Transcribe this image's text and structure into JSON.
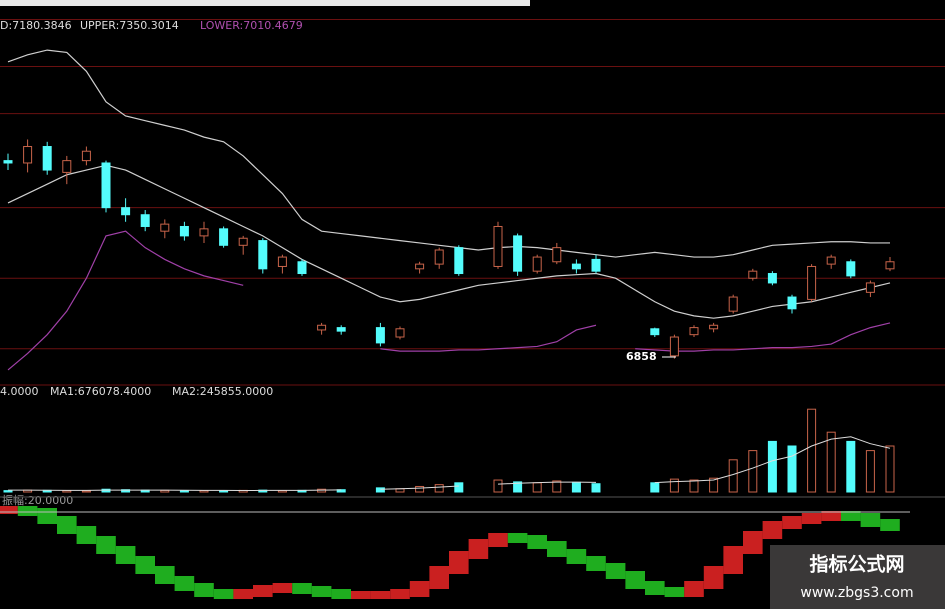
{
  "chart_data": [
    {
      "type": "candlestick",
      "legend": [
        {
          "text": "D:7180.3846",
          "color": "#dddddd"
        },
        {
          "text": "UPPER:7350.3014",
          "color": "#dddddd"
        },
        {
          "text": "LOWER:7010.4679",
          "color": "#b050b0"
        }
      ],
      "categories": [
        null,
        null,
        null,
        null,
        null,
        null,
        null,
        null,
        null,
        null,
        null,
        null,
        null,
        null,
        null,
        null,
        null,
        null,
        null,
        null,
        null,
        null,
        null,
        null,
        null,
        null,
        null,
        null,
        null,
        null,
        null,
        null,
        null,
        null,
        null,
        null,
        null,
        null,
        null,
        null,
        null,
        null,
        null,
        null,
        null,
        null
      ],
      "open": [
        7700,
        7690,
        7760,
        7650,
        7700,
        7690,
        7500,
        7470,
        7400,
        7420,
        7380,
        7410,
        7340,
        7360,
        7250,
        7270,
        6980,
        6990,
        null,
        6990,
        6950,
        7240,
        7260,
        7330,
        null,
        7250,
        7380,
        7230,
        7270,
        7260,
        7280,
        null,
        null,
        6985,
        6870,
        6960,
        6985,
        7060,
        7200,
        7220,
        7120,
        7110,
        7260,
        7270,
        7140,
        7240
      ],
      "high": [
        7730,
        7790,
        7780,
        7720,
        7760,
        7700,
        7540,
        7490,
        7450,
        7440,
        7440,
        7420,
        7380,
        7370,
        7300,
        7280,
        7010,
        7000,
        null,
        7010,
        6995,
        7270,
        7330,
        7340,
        null,
        7440,
        7390,
        7300,
        7350,
        7280,
        7300,
        null,
        null,
        6990,
        6960,
        7000,
        7010,
        7130,
        7240,
        7230,
        7130,
        7260,
        7300,
        7280,
        7190,
        7290
      ],
      "low": [
        7660,
        7650,
        7640,
        7600,
        7680,
        7480,
        7440,
        7400,
        7370,
        7360,
        7350,
        7330,
        7300,
        7220,
        7220,
        7210,
        6960,
        6960,
        null,
        6910,
        6940,
        7220,
        7240,
        7210,
        null,
        7240,
        7210,
        7220,
        7260,
        7220,
        7220,
        null,
        null,
        6950,
        6858,
        6950,
        6970,
        7050,
        7190,
        7170,
        7050,
        7100,
        7240,
        7200,
        7120,
        7230
      ],
      "close": [
        7690,
        7760,
        7660,
        7700,
        7740,
        7500,
        7470,
        7420,
        7430,
        7380,
        7410,
        7340,
        7370,
        7240,
        7290,
        7220,
        7000,
        6975,
        null,
        6925,
        6985,
        7260,
        7320,
        7220,
        null,
        7420,
        7230,
        7290,
        7330,
        7240,
        7230,
        null,
        null,
        6960,
        6950,
        6990,
        7000,
        7120,
        7230,
        7180,
        7070,
        7250,
        7290,
        7210,
        7180,
        7270
      ],
      "up_color": "#c8644a",
      "down_color": "#54fcfc",
      "series": [
        {
          "color": "#cfcfcf",
          "values": [
            8120,
            8150,
            8170,
            8160,
            8080,
            7950,
            7890,
            7870,
            7850,
            7830,
            7800,
            7780,
            7720,
            7640,
            7560,
            7450,
            7400,
            7390,
            7380,
            7370,
            7360,
            7350,
            7340,
            7330,
            7320,
            7330,
            7335,
            7330,
            7320,
            7310,
            7300,
            7290,
            7300,
            7310,
            7300,
            7290,
            7290,
            7300,
            7320,
            7340,
            7345,
            7350,
            7355,
            7355,
            7350,
            7350
          ]
        },
        {
          "color": "#cfcfcf",
          "values": [
            7520,
            7560,
            7600,
            7640,
            7660,
            7680,
            7660,
            7620,
            7580,
            7540,
            7500,
            7460,
            7420,
            7380,
            7330,
            7280,
            7240,
            7200,
            7160,
            7120,
            7100,
            7110,
            7130,
            7150,
            7170,
            7180,
            7190,
            7200,
            7210,
            7215,
            7220,
            7200,
            7150,
            7100,
            7060,
            7040,
            7030,
            7040,
            7060,
            7080,
            7090,
            7100,
            7120,
            7140,
            7160,
            7180
          ]
        },
        {
          "color": "#a040a8",
          "values": [
            6810,
            6880,
            6960,
            7060,
            7200,
            7380,
            7400,
            7330,
            7280,
            7240,
            7210,
            7190,
            7170,
            null,
            null,
            null,
            null,
            null,
            null,
            6900,
            6890,
            6890,
            6890,
            6895,
            6895,
            6900,
            6905,
            6910,
            6930,
            6980,
            7000,
            null,
            6900,
            6895,
            6890,
            6890,
            6895,
            6895,
            6900,
            6905,
            6905,
            6910,
            6920,
            6960,
            6990,
            7010
          ]
        }
      ],
      "ylim": [
        6746,
        8383
      ],
      "gridlines": [
        8300,
        8100,
        7900,
        7500,
        7200,
        6900
      ],
      "grid_color": "#6a1010",
      "annotations": [
        {
          "text": "6858"
        }
      ]
    },
    {
      "type": "bar",
      "legend": [
        {
          "text": "4.0000",
          "color": "#dddddd"
        },
        {
          "text": "MA1:676078.4000",
          "color": "#dddddd"
        },
        {
          "text": "MA2:245855.0000",
          "color": "#dddddd"
        }
      ],
      "categories": [
        null,
        null,
        null,
        null,
        null,
        null,
        null,
        null,
        null,
        null,
        null,
        null,
        null,
        null,
        null,
        null,
        null,
        null,
        null,
        null,
        null,
        null,
        null,
        null,
        null,
        null,
        null,
        null,
        null,
        null,
        null,
        null,
        null,
        null,
        null,
        null,
        null,
        null,
        null,
        null,
        null,
        null,
        null,
        null,
        null,
        null
      ],
      "values": [
        30000,
        40000,
        35000,
        30000,
        25000,
        60000,
        50000,
        40000,
        35000,
        30000,
        30000,
        30000,
        35000,
        40000,
        30000,
        35000,
        60000,
        50000,
        null,
        90000,
        70000,
        120000,
        160000,
        200000,
        null,
        260000,
        220000,
        200000,
        240000,
        210000,
        180000,
        null,
        null,
        200000,
        280000,
        260000,
        300000,
        700000,
        900000,
        1100000,
        1000000,
        1800000,
        1300000,
        1100000,
        900000,
        1000000
      ],
      "series": [
        {
          "color": "#dddddd",
          "values": [
            40000,
            40000,
            38000,
            36000,
            35000,
            40000,
            42000,
            42000,
            40000,
            38000,
            36000,
            34000,
            33000,
            34000,
            35000,
            36000,
            42000,
            45000,
            null,
            60000,
            70000,
            85000,
            105000,
            130000,
            null,
            170000,
            190000,
            205000,
            215000,
            215000,
            210000,
            null,
            null,
            205000,
            225000,
            240000,
            260000,
            380000,
            520000,
            680000,
            780000,
            1000000,
            1150000,
            1200000,
            1050000,
            950000
          ]
        }
      ],
      "ylim": [
        0,
        2000000
      ]
    },
    {
      "type": "line",
      "legend": [
        {
          "text": "振幅:20.0000",
          "color": "#9a9a9a"
        }
      ],
      "categories": [
        null,
        null,
        null,
        null,
        null,
        null,
        null,
        null,
        null,
        null,
        null,
        null,
        null,
        null,
        null,
        null,
        null,
        null,
        null,
        null,
        null,
        null,
        null,
        null,
        null,
        null,
        null,
        null,
        null,
        null,
        null,
        null,
        null,
        null,
        null,
        null,
        null,
        null,
        null,
        null,
        null,
        null,
        null,
        null,
        null,
        null
      ],
      "values": [
        95,
        93,
        85,
        75,
        65,
        55,
        45,
        35,
        25,
        18,
        12,
        10,
        12,
        16,
        18,
        15,
        12,
        10,
        10,
        10,
        12,
        20,
        35,
        50,
        62,
        68,
        66,
        60,
        52,
        45,
        38,
        30,
        20,
        14,
        12,
        20,
        35,
        55,
        70,
        80,
        85,
        88,
        90,
        88,
        82,
        78
      ],
      "up_color": "#e02424",
      "down_color": "#22c022",
      "ylim": [
        0,
        100
      ]
    }
  ],
  "watermark": {
    "title": "指标公式网",
    "url": "www.zbgs3.com"
  }
}
